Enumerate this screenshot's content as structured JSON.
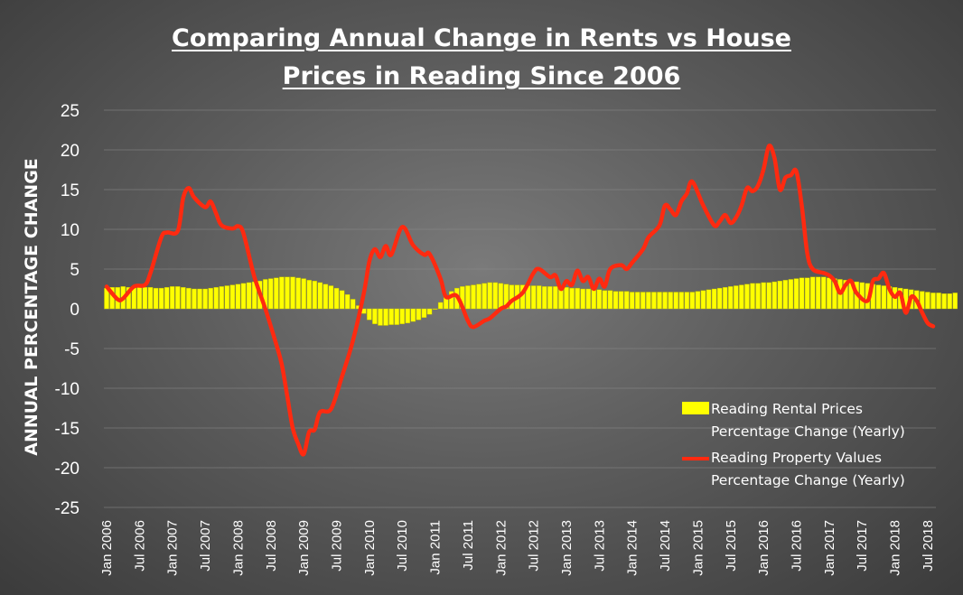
{
  "chart_data": {
    "type": "bar+line",
    "title": [
      "Comparing Annual Change in Rents vs House",
      "Prices in Reading Since 2006"
    ],
    "ylabel": "ANNUAL PERCENTAGE CHANGE",
    "xlabel": "",
    "ylim": [
      -25,
      25
    ],
    "yticks": [
      25,
      20,
      15,
      10,
      5,
      0,
      -5,
      -10,
      -15,
      -20,
      -25
    ],
    "grid": true,
    "legend_position": "bottom-right",
    "x_tick_labels": [
      "Jan 2006",
      "Jul 2006",
      "Jan 2007",
      "Jul 2007",
      "Jan 2008",
      "Jul 2008",
      "Jan 2009",
      "Jul 2009",
      "Jan 2010",
      "Jul 2010",
      "Jan 2011",
      "Jul 2011",
      "Jan 2012",
      "Jul 2012",
      "Jan 2013",
      "Jul 2013",
      "Jan 2014",
      "Jul 2014",
      "Jan 2015",
      "Jul 2015",
      "Jan 2016",
      "Jul 2016",
      "Jan 2017",
      "Jul 2017",
      "Jan 2018",
      "Jul 2018"
    ],
    "series": [
      {
        "name": "Reading Rental Prices Percentage Change (Yearly)",
        "kind": "bar",
        "color": "#ffff00",
        "monthly_start": "Jan 2006",
        "values": [
          2.6,
          2.7,
          2.7,
          2.8,
          2.7,
          2.8,
          2.8,
          2.7,
          2.7,
          2.6,
          2.6,
          2.7,
          2.8,
          2.8,
          2.7,
          2.6,
          2.5,
          2.5,
          2.5,
          2.6,
          2.7,
          2.8,
          2.9,
          3.0,
          3.1,
          3.2,
          3.3,
          3.4,
          3.5,
          3.7,
          3.8,
          3.9,
          4.0,
          4.0,
          4.0,
          3.9,
          3.8,
          3.6,
          3.5,
          3.3,
          3.1,
          2.9,
          2.6,
          2.3,
          1.8,
          1.2,
          0.4,
          -0.6,
          -1.4,
          -1.9,
          -2.1,
          -2.1,
          -2.0,
          -2.0,
          -1.9,
          -1.8,
          -1.6,
          -1.4,
          -1.1,
          -0.7,
          0.0,
          0.8,
          1.6,
          2.2,
          2.6,
          2.8,
          2.9,
          3.0,
          3.1,
          3.2,
          3.3,
          3.3,
          3.2,
          3.1,
          3.0,
          3.0,
          3.0,
          2.9,
          2.9,
          2.9,
          2.8,
          2.8,
          2.8,
          2.7,
          2.7,
          2.6,
          2.6,
          2.5,
          2.5,
          2.4,
          2.4,
          2.3,
          2.3,
          2.2,
          2.2,
          2.2,
          2.1,
          2.1,
          2.1,
          2.1,
          2.1,
          2.1,
          2.1,
          2.1,
          2.1,
          2.1,
          2.1,
          2.1,
          2.2,
          2.3,
          2.4,
          2.5,
          2.6,
          2.7,
          2.8,
          2.9,
          3.0,
          3.1,
          3.2,
          3.2,
          3.3,
          3.3,
          3.4,
          3.5,
          3.6,
          3.7,
          3.8,
          3.9,
          3.9,
          4.0,
          4.0,
          4.0,
          3.9,
          3.8,
          3.7,
          3.6,
          3.5,
          3.4,
          3.3,
          3.2,
          3.1,
          3.0,
          2.9,
          2.8,
          2.7,
          2.6,
          2.5,
          2.4,
          2.3,
          2.2,
          2.1,
          2.0,
          2.0,
          1.9,
          1.9,
          2.0
        ]
      },
      {
        "name": "Reading Property Values Percentage Change (Yearly)",
        "kind": "line",
        "color": "#ff2a10",
        "points": [
          [
            "Jan 2006",
            2.8
          ],
          [
            "Mar 2006",
            1.2
          ],
          [
            "Apr 2006",
            1.3
          ],
          [
            "Jun 2006",
            2.8
          ],
          [
            "Aug 2006",
            3.0
          ],
          [
            "Sep 2006",
            4.5
          ],
          [
            "Nov 2006",
            9.0
          ],
          [
            "Dec 2006",
            9.6
          ],
          [
            "Feb 2007",
            9.8
          ],
          [
            "Mar 2007",
            14.0
          ],
          [
            "Apr 2007",
            15.2
          ],
          [
            "May 2007",
            14.0
          ],
          [
            "Jul 2007",
            12.8
          ],
          [
            "Aug 2007",
            13.5
          ],
          [
            "Sep 2007",
            12.0
          ],
          [
            "Oct 2007",
            10.5
          ],
          [
            "Dec 2007",
            10.1
          ],
          [
            "Jan 2008",
            10.4
          ],
          [
            "Feb 2008",
            9.5
          ],
          [
            "Apr 2008",
            4.0
          ],
          [
            "Jun 2008",
            0.0
          ],
          [
            "Aug 2008",
            -4.5
          ],
          [
            "Sep 2008",
            -7.0
          ],
          [
            "Oct 2008",
            -11.0
          ],
          [
            "Nov 2008",
            -15.0
          ],
          [
            "Dec 2008",
            -17.0
          ],
          [
            "Jan 2009",
            -18.3
          ],
          [
            "Feb 2009",
            -15.5
          ],
          [
            "Mar 2009",
            -15.2
          ],
          [
            "Apr 2009",
            -13.0
          ],
          [
            "Jun 2009",
            -12.6
          ],
          [
            "Aug 2009",
            -8.5
          ],
          [
            "Oct 2009",
            -4.0
          ],
          [
            "Dec 2009",
            2.0
          ],
          [
            "Jan 2010",
            6.0
          ],
          [
            "Feb 2010",
            7.5
          ],
          [
            "Mar 2010",
            6.5
          ],
          [
            "Apr 2010",
            7.9
          ],
          [
            "May 2010",
            6.8
          ],
          [
            "Jul 2010",
            10.3
          ],
          [
            "Sep 2010",
            8.0
          ],
          [
            "Nov 2010",
            6.8
          ],
          [
            "Dec 2010",
            6.9
          ],
          [
            "Feb 2011",
            3.8
          ],
          [
            "Mar 2011",
            1.5
          ],
          [
            "May 2011",
            1.6
          ],
          [
            "Jul 2011",
            -1.5
          ],
          [
            "Aug 2011",
            -2.3
          ],
          [
            "Oct 2011",
            -1.5
          ],
          [
            "Nov 2011",
            -1.2
          ],
          [
            "Jan 2012",
            0.0
          ],
          [
            "Feb 2012",
            0.3
          ],
          [
            "Mar 2012",
            1.0
          ],
          [
            "May 2012",
            2.0
          ],
          [
            "Jul 2012",
            4.5
          ],
          [
            "Aug 2012",
            5.0
          ],
          [
            "Oct 2012",
            4.0
          ],
          [
            "Nov 2012",
            4.2
          ],
          [
            "Dec 2012",
            2.5
          ],
          [
            "Jan 2013",
            3.5
          ],
          [
            "Feb 2013",
            3.0
          ],
          [
            "Mar 2013",
            4.8
          ],
          [
            "Apr 2013",
            3.5
          ],
          [
            "May 2013",
            4.0
          ],
          [
            "Jun 2013",
            2.5
          ],
          [
            "Jul 2013",
            3.8
          ],
          [
            "Aug 2013",
            2.8
          ],
          [
            "Sep 2013",
            5.0
          ],
          [
            "Nov 2013",
            5.5
          ],
          [
            "Dec 2013",
            5.0
          ],
          [
            "Jan 2014",
            5.8
          ],
          [
            "Mar 2014",
            7.5
          ],
          [
            "Apr 2014",
            9.0
          ],
          [
            "Jun 2014",
            10.5
          ],
          [
            "Jul 2014",
            13.0
          ],
          [
            "Aug 2014",
            12.5
          ],
          [
            "Sep 2014",
            11.8
          ],
          [
            "Oct 2014",
            13.5
          ],
          [
            "Nov 2014",
            14.5
          ],
          [
            "Dec 2014",
            16.0
          ],
          [
            "Feb 2015",
            13.0
          ],
          [
            "Apr 2015",
            10.5
          ],
          [
            "May 2015",
            11.0
          ],
          [
            "Jun 2015",
            11.8
          ],
          [
            "Jul 2015",
            10.8
          ],
          [
            "Aug 2015",
            11.5
          ],
          [
            "Sep 2015",
            13.0
          ],
          [
            "Oct 2015",
            15.2
          ],
          [
            "Nov 2015",
            14.8
          ],
          [
            "Dec 2015",
            15.5
          ],
          [
            "Jan 2016",
            17.5
          ],
          [
            "Feb 2016",
            20.5
          ],
          [
            "Mar 2016",
            19.0
          ],
          [
            "Apr 2016",
            15.0
          ],
          [
            "May 2016",
            16.5
          ],
          [
            "Jun 2016",
            16.8
          ],
          [
            "Jul 2016",
            17.3
          ],
          [
            "Aug 2016",
            13.0
          ],
          [
            "Sep 2016",
            7.0
          ],
          [
            "Oct 2016",
            5.0
          ],
          [
            "Dec 2016",
            4.5
          ],
          [
            "Jan 2017",
            4.2
          ],
          [
            "Feb 2017",
            3.5
          ],
          [
            "Mar 2017",
            2.0
          ],
          [
            "Apr 2017",
            3.0
          ],
          [
            "May 2017",
            3.5
          ],
          [
            "Jun 2017",
            2.0
          ],
          [
            "Aug 2017",
            1.0
          ],
          [
            "Sep 2017",
            3.5
          ],
          [
            "Oct 2017",
            3.8
          ],
          [
            "Nov 2017",
            4.5
          ],
          [
            "Dec 2017",
            2.5
          ],
          [
            "Jan 2018",
            1.5
          ],
          [
            "Feb 2018",
            2.0
          ],
          [
            "Mar 2018",
            -0.5
          ],
          [
            "Apr 2018",
            1.5
          ],
          [
            "May 2018",
            1.0
          ],
          [
            "Jun 2018",
            -0.5
          ],
          [
            "Jul 2018",
            -1.8
          ],
          [
            "Aug 2018",
            -2.2
          ]
        ]
      }
    ]
  }
}
